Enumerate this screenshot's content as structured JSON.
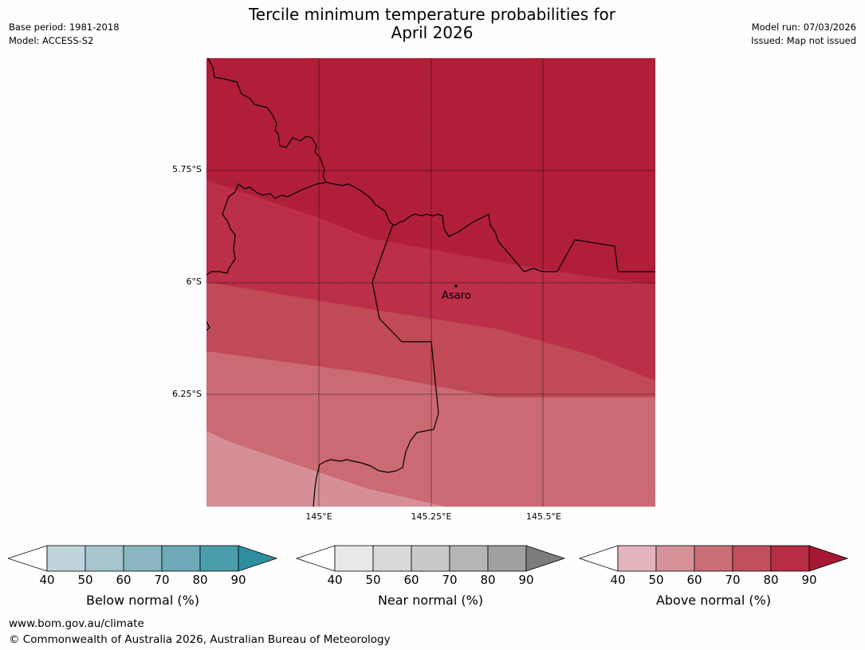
{
  "header": {
    "title_line1": "Tercile minimum temperature probabilities for",
    "title_line2": "April 2026",
    "base_period": "Base period: 1981-2018",
    "model": "Model: ACCESS-S2",
    "model_run": "Model run: 07/03/2026",
    "issued": "Issued: Map not issued"
  },
  "map": {
    "lat_labels": [
      "5.75°S",
      "6°S",
      "6.25°S"
    ],
    "lon_labels": [
      "145°E",
      "145.25°E",
      "145.5°E"
    ],
    "place": "Asaro",
    "band_colors": [
      "#b11e39",
      "#bb2f48",
      "#c04a55",
      "#cb6a72",
      "#d68f96"
    ]
  },
  "colorbars": [
    {
      "label": "Below normal (%)",
      "ticks": [
        "40",
        "50",
        "60",
        "70",
        "80",
        "90"
      ],
      "colors": [
        "#ffffff",
        "#bfd5dc",
        "#a6c5cc",
        "#89b6c1",
        "#6baab6",
        "#4a9eab",
        "#2f8e9d"
      ]
    },
    {
      "label": "Near normal (%)",
      "ticks": [
        "40",
        "50",
        "60",
        "70",
        "80",
        "90"
      ],
      "colors": [
        "#ffffff",
        "#e8e8e8",
        "#d9d9d9",
        "#c9c9c9",
        "#b5b5b5",
        "#a0a0a0",
        "#7c7c7c"
      ]
    },
    {
      "label": "Above normal (%)",
      "ticks": [
        "40",
        "50",
        "60",
        "70",
        "80",
        "90"
      ],
      "colors": [
        "#ffffff",
        "#e2b6bc",
        "#d69199",
        "#cb6e77",
        "#c24f5c",
        "#b72d45",
        "#a51833"
      ]
    }
  ],
  "footer": {
    "url": "www.bom.gov.au/climate",
    "copyright": "© Commonwealth of Australia 2026, Australian Bureau of Meteorology"
  }
}
